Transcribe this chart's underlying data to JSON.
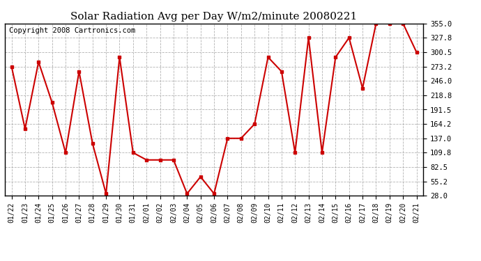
{
  "title": "Solar Radiation Avg per Day W/m2/minute 20080221",
  "copyright": "Copyright 2008 Cartronics.com",
  "x_labels": [
    "01/22",
    "01/23",
    "01/24",
    "01/25",
    "01/26",
    "01/27",
    "01/28",
    "01/29",
    "01/30",
    "01/31",
    "02/01",
    "02/02",
    "02/03",
    "02/04",
    "02/05",
    "02/06",
    "02/07",
    "02/08",
    "02/09",
    "02/10",
    "02/11",
    "02/12",
    "02/13",
    "02/14",
    "02/15",
    "02/16",
    "02/17",
    "02/18",
    "02/19",
    "02/20",
    "02/21"
  ],
  "y_values": [
    273.2,
    155.0,
    282.0,
    205.0,
    109.8,
    264.0,
    127.0,
    32.0,
    291.0,
    109.8,
    96.0,
    96.0,
    96.0,
    32.0,
    64.0,
    32.0,
    137.0,
    137.0,
    164.2,
    291.0,
    264.0,
    109.8,
    328.0,
    109.8,
    291.0,
    328.0,
    232.0,
    355.0,
    355.0,
    355.0,
    300.5
  ],
  "y_ticks": [
    28.0,
    55.2,
    82.5,
    109.8,
    137.0,
    164.2,
    191.5,
    218.8,
    246.0,
    273.2,
    300.5,
    327.8,
    355.0
  ],
  "ylim": [
    28.0,
    355.0
  ],
  "line_color": "#cc0000",
  "marker": "s",
  "marker_size": 3,
  "bg_color": "#ffffff",
  "grid_color": "#aaaaaa",
  "title_fontsize": 11,
  "copyright_fontsize": 7.5,
  "tick_fontsize": 7,
  "ytick_fontsize": 7.5
}
